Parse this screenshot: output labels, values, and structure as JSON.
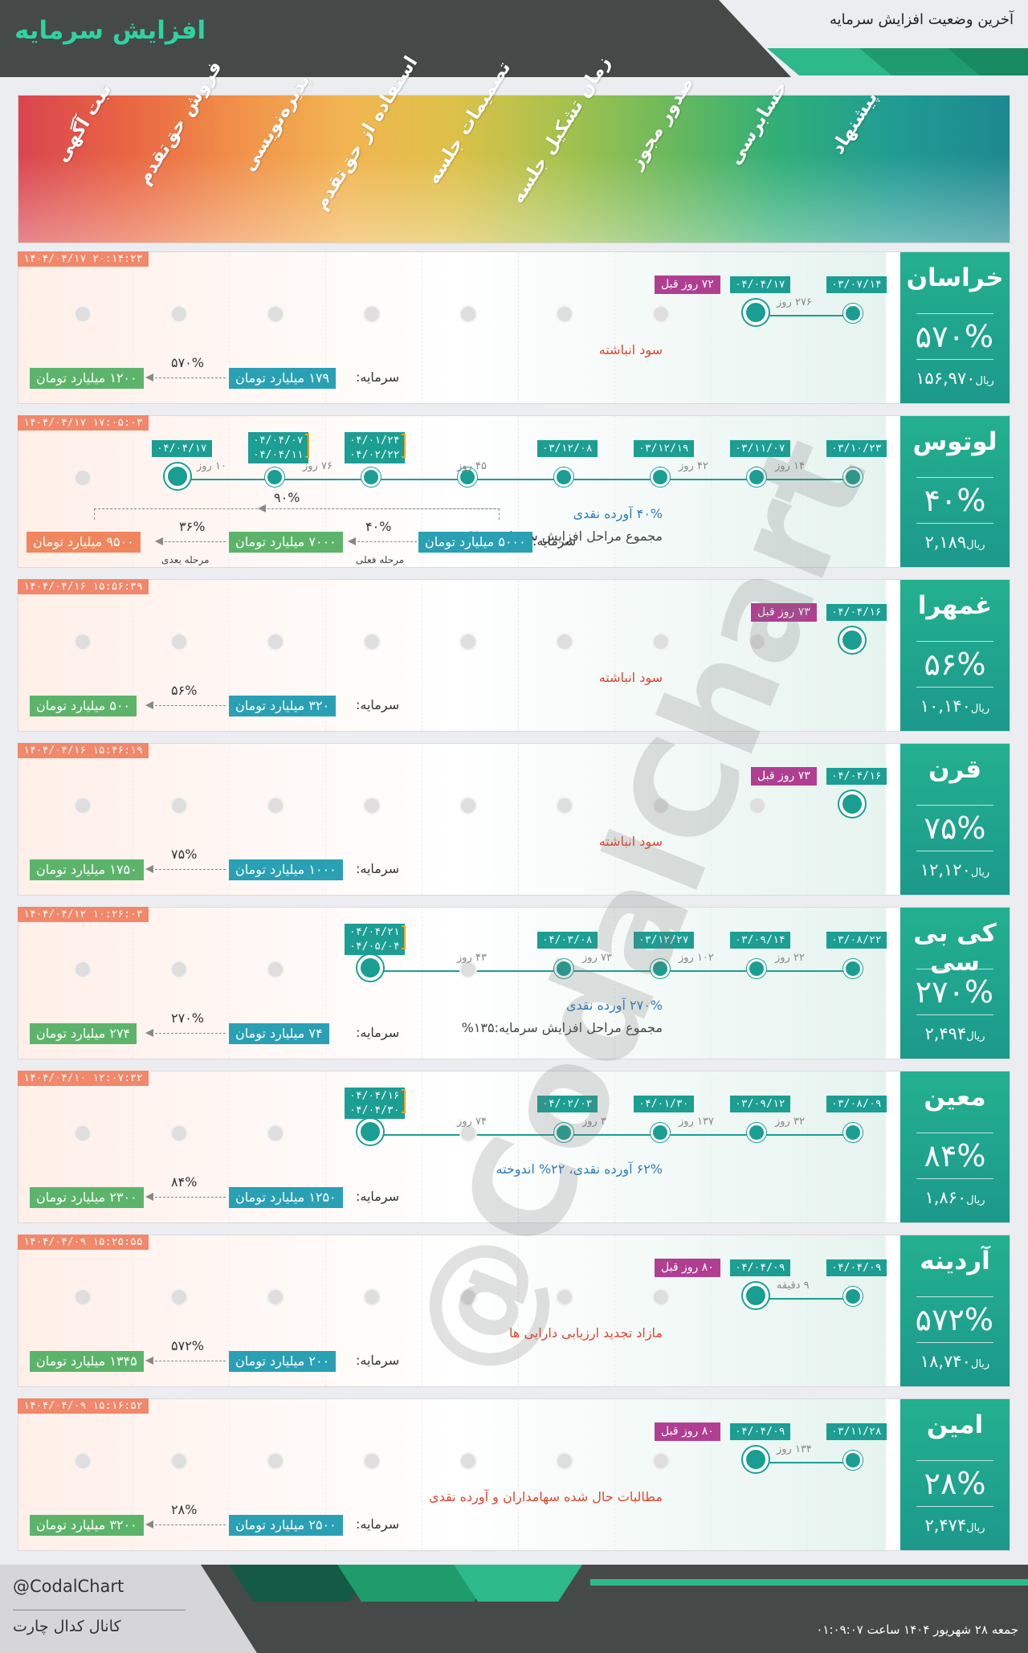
{
  "header": {
    "title": "افزایش سرمایه",
    "subtitle": "آخرین وضعیت افزایش سرمایه"
  },
  "stages": [
    "ثبت آگهی",
    "فروش حق‌تقدم",
    "پذیره‌نویسی",
    "استفاده از حق‌تقدم",
    "تصمیمات جلسه",
    "زمان تشکیل جلسه",
    "صدور مجوز",
    "حسابرسی",
    "پیشنهاد"
  ],
  "capital_label": "سرمایه:",
  "rows": [
    {
      "name": "خراسان",
      "pct": "۵۷۰%",
      "price": "۱۵۶,۹۷۰",
      "unit": "ریال",
      "stamp": "۱۴۰۴/۰۴/۱۷ ۲۰:۱۴:۲۳",
      "dates": [
        "۰۳/۰۷/۱۴",
        "۰۴/۰۴/۱۷"
      ],
      "gaps": [
        "۲۷۶ روز"
      ],
      "age": "۷۲ روز قبل",
      "note": "سود انباشته",
      "note_color": "#e0452e",
      "cap_from": "۱۷۹ میلیارد تومان",
      "cap_to": "۱۲۰۰ میلیارد تومان",
      "cap_pct": "۵۷۰%"
    },
    {
      "name": "لوتوس",
      "pct": "۴۰%",
      "price": "۲,۱۸۹",
      "unit": "ریال",
      "stamp": "۱۴۰۴/۰۴/۱۷ ۱۷:۰۵:۰۳",
      "dates": [
        "۰۳/۱۰/۲۳",
        "۰۳/۱۱/۰۷",
        "۰۳/۱۲/۱۹",
        "۰۳/۱۲/۰۸",
        "۰۴/۰۱/۲۴",
        "۰۴/۰۲/۲۲",
        "۰۴/۰۴/۰۷",
        "۰۴/۰۴/۱۱",
        "۰۴/۰۴/۱۷"
      ],
      "gaps": [
        "۱۴ روز",
        "۴۲ روز",
        "۴۵ روز",
        "۷۶ روز",
        "۱۰ روز"
      ],
      "note": "۴۰% آورده نقدی",
      "note_color": "#2e7bbf",
      "note2": "مجموع مراحل افزایش سرمایه:۹۰%",
      "cap_from": "۵۰۰۰ میلیارد تومان",
      "cap_to": "۷۰۰۰ میلیارد تومان",
      "cap_next": "۹۵۰۰ میلیارد تومان",
      "cap_pct": "۴۰%",
      "cap_pct2": "۳۶%",
      "cap_total": "۹۰%",
      "stage_now": "مرحله فعلی",
      "stage_next": "مرحله بعدی"
    },
    {
      "name": "غمهرا",
      "pct": "۵۶%",
      "price": "۱۰,۱۴۰",
      "unit": "ریال",
      "stamp": "۱۴۰۴/۰۴/۱۶ ۱۵:۵۶:۳۹",
      "dates": [
        "۰۴/۰۴/۱۶"
      ],
      "age": "۷۳ روز قبل",
      "note": "سود انباشته",
      "note_color": "#e0452e",
      "cap_from": "۳۲۰ میلیارد تومان",
      "cap_to": "۵۰۰ میلیارد تومان",
      "cap_pct": "۵۶%"
    },
    {
      "name": "قرن",
      "pct": "۷۵%",
      "price": "۱۲,۱۲۰",
      "unit": "ریال",
      "stamp": "۱۴۰۴/۰۴/۱۶ ۱۵:۴۶:۱۹",
      "dates": [
        "۰۴/۰۴/۱۶"
      ],
      "age": "۷۳ روز قبل",
      "note": "سود انباشته",
      "note_color": "#e0452e",
      "cap_from": "۱۰۰۰ میلیارد تومان",
      "cap_to": "۱۷۵۰ میلیارد تومان",
      "cap_pct": "۷۵%"
    },
    {
      "name": "کی بی سی",
      "pct": "۲۷۰%",
      "price": "۲,۴۹۴",
      "unit": "ریال",
      "stamp": "۱۴۰۴/۰۴/۱۲ ۱۰:۲۶:۰۳",
      "dates": [
        "۰۳/۰۸/۲۲",
        "۰۳/۰۹/۱۴",
        "۰۳/۱۲/۲۷",
        "۰۴/۰۳/۰۸",
        "۰۴/۰۴/۲۱",
        "۰۴/۰۵/۰۴"
      ],
      "gaps": [
        "۲۲ روز",
        "۱۰۲ روز",
        "۷۳ روز",
        "۴۳ روز"
      ],
      "note": "۲۷۰% آورده نقدی",
      "note_color": "#2e7bbf",
      "note2": "مجموع مراحل افزایش سرمایه:۱۳۵%",
      "cap_from": "۷۴ میلیارد تومان",
      "cap_to": "۲۷۴ میلیارد تومان",
      "cap_pct": "۲۷۰%"
    },
    {
      "name": "معین",
      "pct": "۸۴%",
      "price": "۱,۸۶۰",
      "unit": "ریال",
      "stamp": "۱۴۰۴/۰۴/۱۰ ۱۲:۰۷:۳۲",
      "dates": [
        "۰۳/۰۸/۰۹",
        "۰۳/۰۹/۱۲",
        "۰۴/۰۱/۳۰",
        "۰۴/۰۲/۰۳",
        "۰۴/۰۴/۱۶",
        "۰۴/۰۴/۳۰"
      ],
      "gaps": [
        "۳۲ روز",
        "۱۳۷ روز",
        "۳ روز",
        "۷۴ روز"
      ],
      "note": "۶۲% آورده نقدی، ۲۲% اندوخته",
      "note_color": "#2e7bbf",
      "cap_from": "۱۲۵۰ میلیارد تومان",
      "cap_to": "۲۳۰۰ میلیارد تومان",
      "cap_pct": "۸۴%"
    },
    {
      "name": "آردینه",
      "pct": "۵۷۲%",
      "price": "۱۸,۷۴۰",
      "unit": "ریال",
      "stamp": "۱۴۰۴/۰۴/۰۹ ۱۵:۲۵:۵۵",
      "dates": [
        "۰۴/۰۴/۰۹",
        "۰۴/۰۴/۰۹"
      ],
      "gaps": [
        "۹ دقیقه"
      ],
      "age": "۸۰ روز قبل",
      "note": "مازاد تجدید ارزیابی دارایی ها",
      "note_color": "#e0452e",
      "cap_from": "۲۰۰ میلیارد تومان",
      "cap_to": "۱۳۴۵ میلیارد تومان",
      "cap_pct": "۵۷۲%"
    },
    {
      "name": "امین",
      "pct": "۲۸%",
      "price": "۲,۴۷۴",
      "unit": "ریال",
      "stamp": "۱۴۰۴/۰۴/۰۹ ۱۵:۱۶:۵۲",
      "dates": [
        "۰۳/۱۱/۲۸",
        "۰۴/۰۴/۰۹"
      ],
      "gaps": [
        "۱۳۴ روز"
      ],
      "age": "۸۰ روز قبل",
      "note": "مطالبات حال شده سهامداران و آورده نقدی",
      "note_color": "#e0452e",
      "cap_from": "۲۵۰۰ میلیارد تومان",
      "cap_to": "۳۲۰۰ میلیارد تومان",
      "cap_pct": "۲۸%"
    }
  ],
  "watermark": "@CodalChart",
  "footer": {
    "handle": "@CodalChart",
    "channel": "کانال کدال چارت",
    "date": "جمعه ۲۸ شهریور ۱۴۰۴ ساعت ۰۱:۰۹:۰۷"
  },
  "colors": {
    "accent": "#1c9e93",
    "dark": "#454a48",
    "title_green": "#2ed3a0",
    "stamp": "#f2876a",
    "age": "#b03f92",
    "cap_blue": "#2aa0b4",
    "cap_green": "#5cb46b",
    "cap_orange": "#f0865d"
  }
}
